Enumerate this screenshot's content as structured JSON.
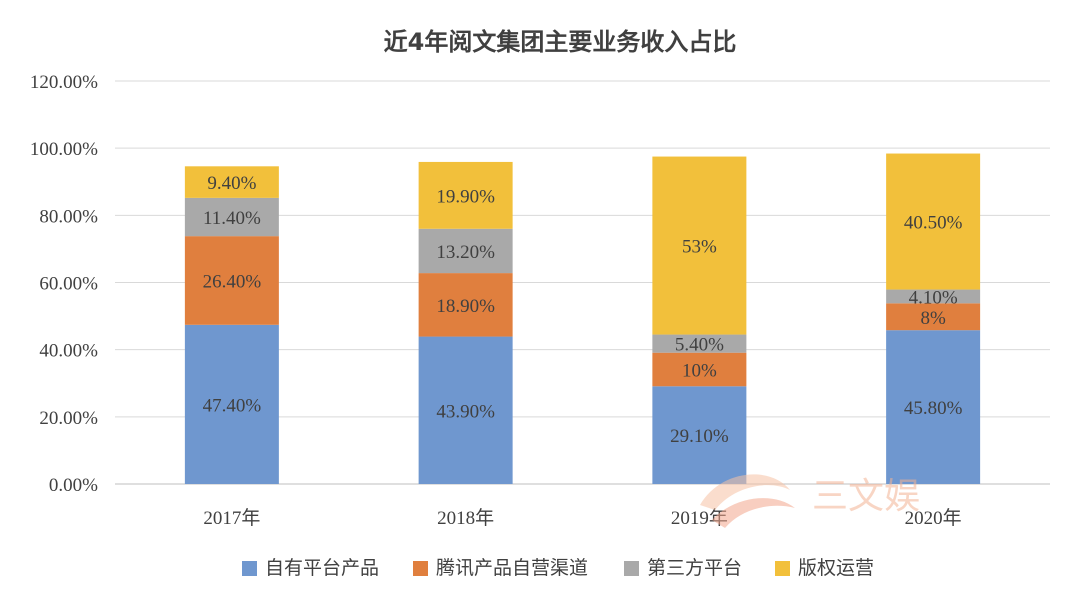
{
  "chart_data": {
    "type": "bar",
    "stacked": true,
    "title": "近4年阅文集团主要业务收入占比",
    "xlabel": "",
    "ylabel": "",
    "ylim": [
      0,
      1.2
    ],
    "yticks": [
      0,
      0.2,
      0.4,
      0.6,
      0.8,
      1.0,
      1.2
    ],
    "ytick_labels": [
      "0.00%",
      "20.00%",
      "40.00%",
      "60.00%",
      "80.00%",
      "100.00%",
      "120.00%"
    ],
    "grid": true,
    "legend_position": "bottom",
    "categories": [
      "2017年",
      "2018年",
      "2019年",
      "2020年"
    ],
    "series": [
      {
        "name": "自有平台产品",
        "color": "#6f97cf",
        "values": [
          0.474,
          0.439,
          0.291,
          0.458
        ],
        "labels": [
          "47.40%",
          "43.90%",
          "29.10%",
          "45.80%"
        ]
      },
      {
        "name": "腾讯产品自营渠道",
        "color": "#e07f3e",
        "values": [
          0.264,
          0.189,
          0.1,
          0.08
        ],
        "labels": [
          "26.40%",
          "18.90%",
          "10%",
          "8%"
        ]
      },
      {
        "name": "第三方平台",
        "color": "#a9a9a9",
        "values": [
          0.114,
          0.132,
          0.054,
          0.041
        ],
        "labels": [
          "11.40%",
          "13.20%",
          "5.40%",
          "4.10%"
        ]
      },
      {
        "name": "版权运营",
        "color": "#f2c03b",
        "values": [
          0.094,
          0.199,
          0.53,
          0.405
        ],
        "labels": [
          "9.40%",
          "19.90%",
          "53%",
          "40.50%"
        ]
      }
    ]
  },
  "watermark": {
    "text": "三文娱"
  }
}
